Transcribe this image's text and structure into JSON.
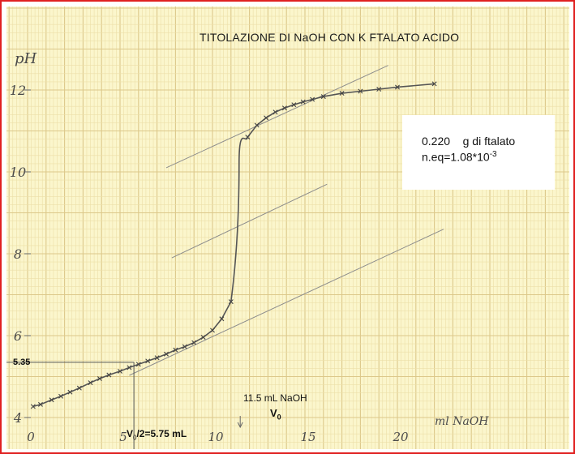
{
  "chart_data": {
    "type": "scatter",
    "title": "TITOLAZIONE DI  NaOH CON K FTALATO ACIDO",
    "xlabel": "ml NaOH",
    "ylabel": "pH",
    "xlim": [
      0,
      28
    ],
    "ylim": [
      4,
      13
    ],
    "x_ticks": [
      "0",
      "5",
      "10",
      "15",
      "20"
    ],
    "y_ticks": [
      "4",
      "6",
      "8",
      "10",
      "12"
    ],
    "grid": true,
    "points": [
      {
        "x": 0.3,
        "y": 4.27
      },
      {
        "x": 0.7,
        "y": 4.32
      },
      {
        "x": 1.3,
        "y": 4.43
      },
      {
        "x": 1.8,
        "y": 4.52
      },
      {
        "x": 2.3,
        "y": 4.62
      },
      {
        "x": 2.8,
        "y": 4.72
      },
      {
        "x": 3.4,
        "y": 4.85
      },
      {
        "x": 3.9,
        "y": 4.95
      },
      {
        "x": 4.4,
        "y": 5.04
      },
      {
        "x": 5.0,
        "y": 5.13
      },
      {
        "x": 5.5,
        "y": 5.22
      },
      {
        "x": 6.0,
        "y": 5.3
      },
      {
        "x": 6.5,
        "y": 5.38
      },
      {
        "x": 7.0,
        "y": 5.46
      },
      {
        "x": 7.5,
        "y": 5.55
      },
      {
        "x": 8.0,
        "y": 5.65
      },
      {
        "x": 8.5,
        "y": 5.73
      },
      {
        "x": 9.0,
        "y": 5.83
      },
      {
        "x": 9.5,
        "y": 5.96
      },
      {
        "x": 10.0,
        "y": 6.13
      },
      {
        "x": 10.5,
        "y": 6.41
      },
      {
        "x": 11.0,
        "y": 6.83
      },
      {
        "x": 11.9,
        "y": 10.85
      },
      {
        "x": 12.4,
        "y": 11.14
      },
      {
        "x": 12.9,
        "y": 11.32
      },
      {
        "x": 13.4,
        "y": 11.46
      },
      {
        "x": 13.9,
        "y": 11.56
      },
      {
        "x": 14.4,
        "y": 11.64
      },
      {
        "x": 14.9,
        "y": 11.71
      },
      {
        "x": 15.4,
        "y": 11.77
      },
      {
        "x": 16.0,
        "y": 11.84
      },
      {
        "x": 17.0,
        "y": 11.92
      },
      {
        "x": 18.0,
        "y": 11.97
      },
      {
        "x": 19.0,
        "y": 12.02
      },
      {
        "x": 20.0,
        "y": 12.07
      },
      {
        "x": 22.0,
        "y": 12.15
      }
    ],
    "tangent_lines": [
      {
        "from": [
          5.5,
          5.03
        ],
        "to": [
          22.5,
          8.6
        ]
      },
      {
        "from": [
          7.5,
          10.1
        ],
        "to": [
          19.5,
          12.6
        ]
      },
      {
        "from": [
          7.8,
          7.9
        ],
        "to": [
          16.2,
          9.7
        ]
      }
    ],
    "annotations": {
      "ph_half_label": "5.35",
      "ph_half_value": 5.35,
      "v_half_x": 5.75,
      "v_half_prefix": "V",
      "v_half_sub": "0",
      "v_half_suffix": "/2=5.75 mL",
      "v0_text": "11.5 mL NaOH",
      "v0_label": "V",
      "v0_sub": "0",
      "v0_x": 11.5
    },
    "info": {
      "line1_value": "0.220",
      "line1_text": "g di ftalato",
      "line2_text": "n.eq=1.08*10",
      "line2_exp": "-3"
    }
  },
  "colors": {
    "paper": "#fbf6cc",
    "grid_minor": "#ecdfa8",
    "grid_major": "#dcc88a",
    "marker": "#444444",
    "curve": "#555555",
    "tangent": "#8c8c8c",
    "frame": "#e02020"
  }
}
